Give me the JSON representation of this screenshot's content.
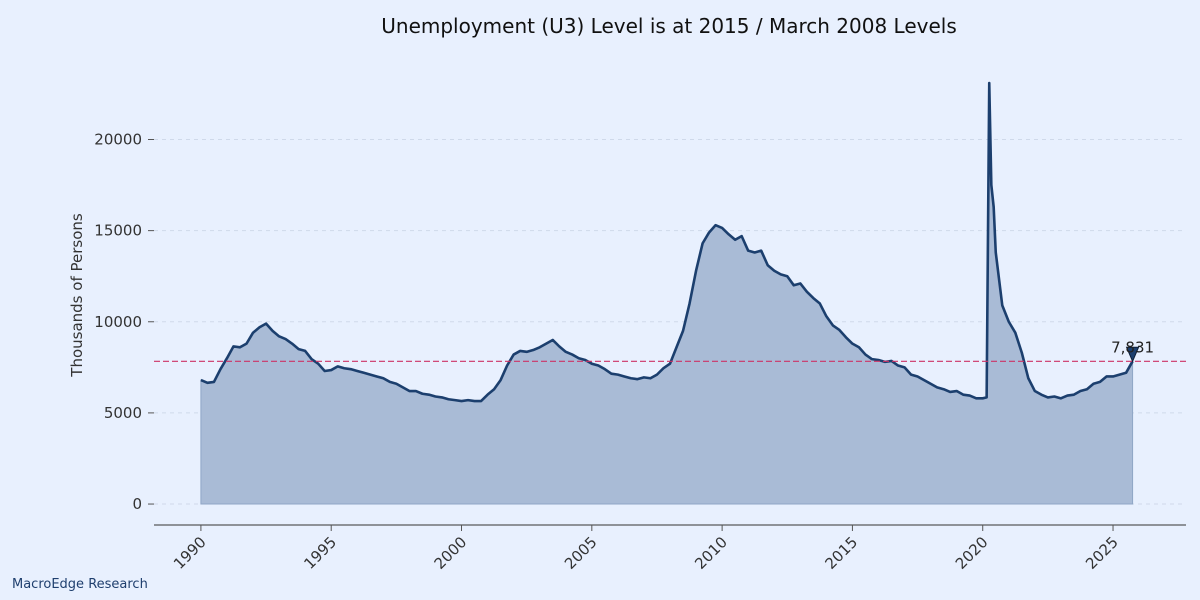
{
  "footer": {
    "credit": "MacroEdge Research"
  },
  "chart_data": {
    "type": "area",
    "title": "Unemployment (U3) Level is at 2015 / March 2008 Levels",
    "xlabel": "",
    "ylabel": "Thousands of Persons",
    "xlim": [
      1988.2,
      2027.8
    ],
    "ylim": [
      -1150,
      24800
    ],
    "x_ticks": [
      1990,
      1995,
      2000,
      2005,
      2010,
      2015,
      2020,
      2025
    ],
    "y_ticks": [
      0,
      5000,
      10000,
      15000,
      20000
    ],
    "grid": "horizontal-dashed",
    "colors": {
      "line": "#1c3f6e",
      "fill": "#a9bbd6",
      "reference": "#cc3366",
      "background": "#e8f0fe"
    },
    "reference_line": {
      "y": 7831
    },
    "last_point": {
      "x": 2025.75,
      "y": 7831,
      "label": "7,831"
    },
    "series": [
      {
        "x": [
          1990.0,
          1990.25,
          1990.5,
          1990.75,
          1991.0,
          1991.25,
          1991.5,
          1991.75,
          1992.0,
          1992.25,
          1992.5,
          1992.75,
          1993.0,
          1993.25,
          1993.5,
          1993.75,
          1994.0,
          1994.25,
          1994.5,
          1994.75,
          1995.0,
          1995.25,
          1995.5,
          1995.75,
          1996.0,
          1996.25,
          1996.5,
          1996.75,
          1997.0,
          1997.25,
          1997.5,
          1997.75,
          1998.0,
          1998.25,
          1998.5,
          1998.75,
          1999.0,
          1999.25,
          1999.5,
          1999.75,
          2000.0,
          2000.25,
          2000.5,
          2000.75,
          2001.0,
          2001.25,
          2001.5,
          2001.75,
          2002.0,
          2002.25,
          2002.5,
          2002.75,
          2003.0,
          2003.25,
          2003.5,
          2003.75,
          2004.0,
          2004.25,
          2004.5,
          2004.75,
          2005.0,
          2005.25,
          2005.5,
          2005.75,
          2006.0,
          2006.25,
          2006.5,
          2006.75,
          2007.0,
          2007.25,
          2007.5,
          2007.75,
          2008.0,
          2008.25,
          2008.5,
          2008.75,
          2009.0,
          2009.25,
          2009.5,
          2009.75,
          2010.0,
          2010.25,
          2010.5,
          2010.75,
          2011.0,
          2011.25,
          2011.5,
          2011.75,
          2012.0,
          2012.25,
          2012.5,
          2012.75,
          2013.0,
          2013.25,
          2013.5,
          2013.75,
          2014.0,
          2014.25,
          2014.5,
          2014.75,
          2015.0,
          2015.25,
          2015.5,
          2015.75,
          2016.0,
          2016.25,
          2016.5,
          2016.75,
          2017.0,
          2017.25,
          2017.5,
          2017.75,
          2018.0,
          2018.25,
          2018.5,
          2018.75,
          2019.0,
          2019.25,
          2019.5,
          2019.75,
          2020.0,
          2020.15,
          2020.25,
          2020.33,
          2020.42,
          2020.5,
          2020.75,
          2021.0,
          2021.25,
          2021.5,
          2021.75,
          2022.0,
          2022.25,
          2022.5,
          2022.75,
          2023.0,
          2023.25,
          2023.5,
          2023.75,
          2024.0,
          2024.25,
          2024.5,
          2024.75,
          2025.0,
          2025.25,
          2025.5,
          2025.75
        ],
        "values": [
          6800,
          6650,
          6700,
          7400,
          8000,
          8650,
          8600,
          8800,
          9400,
          9700,
          9900,
          9500,
          9200,
          9050,
          8800,
          8500,
          8400,
          7950,
          7700,
          7300,
          7350,
          7550,
          7450,
          7400,
          7300,
          7200,
          7100,
          7000,
          6900,
          6700,
          6600,
          6400,
          6200,
          6200,
          6050,
          6000,
          5900,
          5850,
          5750,
          5700,
          5650,
          5700,
          5650,
          5650,
          6000,
          6300,
          6800,
          7600,
          8200,
          8400,
          8350,
          8450,
          8600,
          8800,
          9000,
          8650,
          8350,
          8200,
          8000,
          7900,
          7700,
          7600,
          7400,
          7150,
          7100,
          7000,
          6900,
          6850,
          6950,
          6900,
          7100,
          7450,
          7700,
          8600,
          9500,
          11000,
          12800,
          14300,
          14900,
          15300,
          15150,
          14800,
          14500,
          14700,
          13900,
          13800,
          13900,
          13100,
          12800,
          12600,
          12500,
          12000,
          12100,
          11650,
          11300,
          11000,
          10300,
          9800,
          9550,
          9150,
          8800,
          8600,
          8200,
          7950,
          7900,
          7800,
          7850,
          7600,
          7500,
          7100,
          7000,
          6800,
          6600,
          6400,
          6300,
          6150,
          6200,
          6000,
          5950,
          5800,
          5800,
          5850,
          23100,
          17500,
          16300,
          13800,
          10900,
          10000,
          9400,
          8300,
          6900,
          6200,
          6000,
          5850,
          5900,
          5800,
          5950,
          6000,
          6200,
          6300,
          6600,
          6700,
          7000,
          7000,
          7100,
          7200,
          7831
        ]
      }
    ]
  }
}
